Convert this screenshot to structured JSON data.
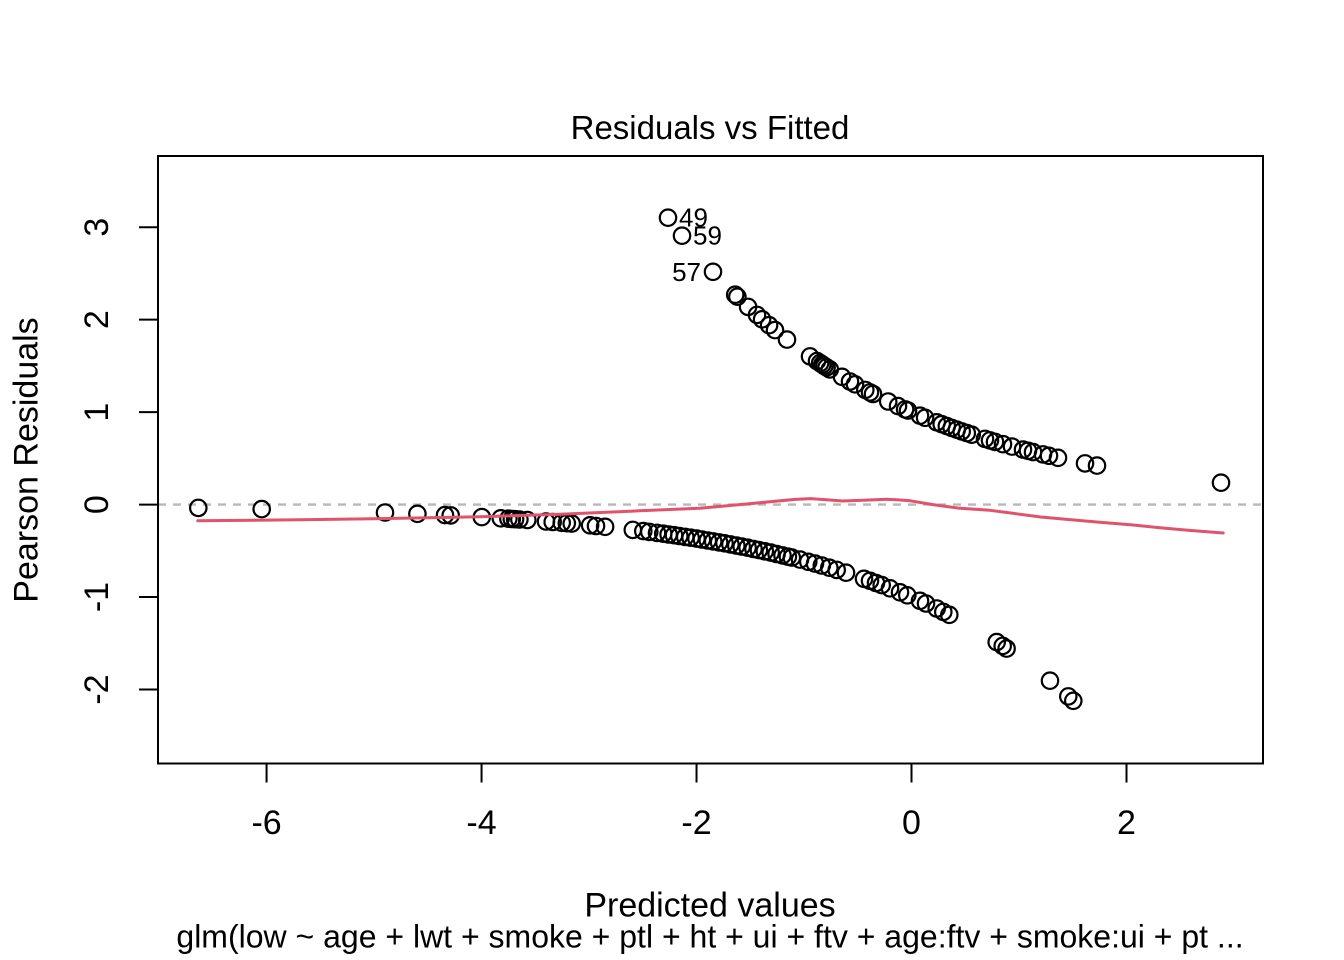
{
  "title": "Residuals vs Fitted",
  "caption": "glm(low ~ age + lwt + smoke + ptl + ht + ui + ftv + age:ftv + smoke:ui + pt ...",
  "x_axis": {
    "label": "Predicted values",
    "tick_labels": [
      "-6",
      "-4",
      "-2",
      "0",
      "2"
    ]
  },
  "y_axis": {
    "label": "Pearson Residuals",
    "tick_labels": [
      "3",
      "2",
      "1",
      "0",
      "-1",
      "-2"
    ]
  },
  "colors": {
    "points": "#000000",
    "smoother": "#DF536B",
    "zero_line": "#b8b8b8",
    "axis": "#000000",
    "background": "#ffffff"
  },
  "chart_data": {
    "type": "scatter",
    "title": "Residuals vs Fitted",
    "xlabel": "Predicted values",
    "ylabel": "Pearson Residuals",
    "sub_caption": "glm(low ~ age + lwt + smoke + ptl + ht + ui + ftv + age:ftv + smoke:ui + pt ...",
    "xlim": [
      -7.01,
      3.27
    ],
    "ylim": [
      -2.8,
      3.77
    ],
    "x_ticks": [
      -6,
      -4,
      -2,
      0,
      2
    ],
    "y_ticks": [
      3,
      2,
      1,
      0,
      -1,
      -2
    ],
    "grid": false,
    "legend": "none",
    "marker": "open-circle",
    "reference_line": {
      "y": 0,
      "style": "dashed"
    },
    "labeled_points": [
      {
        "label": "49",
        "x": -2.265,
        "y": 3.103,
        "label_side": "right"
      },
      {
        "label": "59",
        "x": -2.135,
        "y": 2.908,
        "label_side": "right"
      },
      {
        "label": "57",
        "x": -1.847,
        "y": 2.518,
        "label_side": "left"
      }
    ],
    "series": [
      {
        "name": "positive-pearson-residuals",
        "points": [
          [
            -1.64,
            2.27
          ],
          [
            -1.62,
            2.248
          ],
          [
            -1.52,
            2.138
          ],
          [
            -1.437,
            2.051
          ],
          [
            -1.39,
            2.004
          ],
          [
            -1.325,
            1.94
          ],
          [
            -1.27,
            1.887
          ],
          [
            -1.158,
            1.784
          ],
          [
            -0.944,
            1.603
          ],
          [
            -0.879,
            1.552
          ],
          [
            -0.85,
            1.53
          ],
          [
            -0.83,
            1.514
          ],
          [
            -0.81,
            1.499
          ],
          [
            -0.79,
            1.484
          ],
          [
            -0.76,
            1.462
          ],
          [
            -0.647,
            1.382
          ],
          [
            -0.572,
            1.331
          ],
          [
            -0.526,
            1.301
          ],
          [
            -0.43,
            1.24
          ],
          [
            -0.386,
            1.213
          ],
          [
            -0.358,
            1.196
          ],
          [
            -0.217,
            1.115
          ],
          [
            -0.126,
            1.065
          ],
          [
            -0.06,
            1.03
          ],
          [
            -0.033,
            1.017
          ],
          [
            0.079,
            0.961
          ],
          [
            0.126,
            0.939
          ],
          [
            0.234,
            0.89
          ],
          [
            0.281,
            0.869
          ],
          [
            0.328,
            0.849
          ],
          [
            0.374,
            0.829
          ],
          [
            0.421,
            0.81
          ],
          [
            0.467,
            0.792
          ],
          [
            0.514,
            0.773
          ],
          [
            0.56,
            0.756
          ],
          [
            0.684,
            0.71
          ],
          [
            0.73,
            0.694
          ],
          [
            0.777,
            0.678
          ],
          [
            0.851,
            0.653
          ],
          [
            0.935,
            0.627
          ],
          [
            1.037,
            0.595
          ],
          [
            1.084,
            0.582
          ],
          [
            1.13,
            0.568
          ],
          [
            1.223,
            0.543
          ],
          [
            1.279,
            0.528
          ],
          [
            1.363,
            0.506
          ],
          [
            1.614,
            0.446
          ],
          [
            1.726,
            0.422
          ],
          [
            2.879,
            0.237
          ]
        ]
      },
      {
        "name": "negative-pearson-residuals",
        "points": [
          [
            -6.635,
            -0.036
          ],
          [
            -6.045,
            -0.049
          ],
          [
            -4.898,
            -0.086
          ],
          [
            -4.597,
            -0.1
          ],
          [
            -4.34,
            -0.114
          ],
          [
            -4.287,
            -0.117
          ],
          [
            -3.998,
            -0.135
          ],
          [
            -3.821,
            -0.148
          ],
          [
            -3.75,
            -0.153
          ],
          [
            -3.719,
            -0.156
          ],
          [
            -3.688,
            -0.158
          ],
          [
            -3.648,
            -0.161
          ],
          [
            -3.574,
            -0.167
          ],
          [
            -3.4,
            -0.183
          ],
          [
            -3.338,
            -0.188
          ],
          [
            -3.254,
            -0.197
          ],
          [
            -3.207,
            -0.201
          ],
          [
            -3.161,
            -0.206
          ],
          [
            -2.99,
            -0.224
          ],
          [
            -2.935,
            -0.231
          ],
          [
            -2.851,
            -0.24
          ],
          [
            -2.593,
            -0.274
          ],
          [
            -2.495,
            -0.287
          ],
          [
            -2.439,
            -0.295
          ],
          [
            -2.368,
            -0.306
          ],
          [
            -2.31,
            -0.315
          ],
          [
            -2.26,
            -0.323
          ],
          [
            -2.21,
            -0.331
          ],
          [
            -2.16,
            -0.34
          ],
          [
            -2.105,
            -0.349
          ],
          [
            -2.055,
            -0.358
          ],
          [
            -2.0,
            -0.368
          ],
          [
            -1.95,
            -0.377
          ],
          [
            -1.895,
            -0.388
          ],
          [
            -1.845,
            -0.398
          ],
          [
            -1.79,
            -0.409
          ],
          [
            -1.74,
            -0.419
          ],
          [
            -1.685,
            -0.431
          ],
          [
            -1.63,
            -0.443
          ],
          [
            -1.58,
            -0.454
          ],
          [
            -1.525,
            -0.466
          ],
          [
            -1.47,
            -0.48
          ],
          [
            -1.42,
            -0.492
          ],
          [
            -1.365,
            -0.505
          ],
          [
            -1.31,
            -0.519
          ],
          [
            -1.255,
            -0.534
          ],
          [
            -1.2,
            -0.549
          ],
          [
            -1.15,
            -0.563
          ],
          [
            -1.114,
            -0.573
          ],
          [
            -1.037,
            -0.595
          ],
          [
            -0.96,
            -0.619
          ],
          [
            -0.898,
            -0.638
          ],
          [
            -0.835,
            -0.659
          ],
          [
            -0.765,
            -0.682
          ],
          [
            -0.696,
            -0.706
          ],
          [
            -0.609,
            -0.737
          ],
          [
            -0.442,
            -0.802
          ],
          [
            -0.386,
            -0.824
          ],
          [
            -0.33,
            -0.848
          ],
          [
            -0.277,
            -0.871
          ],
          [
            -0.2,
            -0.905
          ],
          [
            -0.107,
            -0.948
          ],
          [
            -0.039,
            -0.981
          ],
          [
            0.079,
            -1.04
          ],
          [
            0.135,
            -1.07
          ],
          [
            0.234,
            -1.124
          ],
          [
            0.296,
            -1.16
          ],
          [
            0.352,
            -1.192
          ],
          [
            0.793,
            -1.487
          ],
          [
            0.848,
            -1.528
          ],
          [
            0.885,
            -1.557
          ],
          [
            1.288,
            -1.904
          ],
          [
            1.459,
            -2.074
          ],
          [
            1.505,
            -2.122
          ]
        ]
      }
    ],
    "smoother": {
      "name": "loess-smoother",
      "points": [
        [
          -6.64,
          -0.175
        ],
        [
          -5.69,
          -0.164
        ],
        [
          -4.76,
          -0.148
        ],
        [
          -4.01,
          -0.132
        ],
        [
          -3.27,
          -0.105
        ],
        [
          -2.53,
          -0.067
        ],
        [
          -1.97,
          -0.04
        ],
        [
          -1.6,
          0.0
        ],
        [
          -1.4,
          0.022
        ],
        [
          -1.22,
          0.041
        ],
        [
          -1.08,
          0.056
        ],
        [
          -0.94,
          0.065
        ],
        [
          -0.79,
          0.052
        ],
        [
          -0.64,
          0.039
        ],
        [
          -0.45,
          0.047
        ],
        [
          -0.23,
          0.057
        ],
        [
          -0.1,
          0.05
        ],
        [
          -0.01,
          0.041
        ],
        [
          0.2,
          0.0
        ],
        [
          0.45,
          -0.04
        ],
        [
          0.73,
          -0.062
        ],
        [
          0.95,
          -0.095
        ],
        [
          1.2,
          -0.134
        ],
        [
          1.5,
          -0.165
        ],
        [
          1.75,
          -0.191
        ],
        [
          2.05,
          -0.22
        ],
        [
          2.31,
          -0.251
        ],
        [
          2.6,
          -0.28
        ],
        [
          2.9,
          -0.307
        ]
      ]
    }
  }
}
